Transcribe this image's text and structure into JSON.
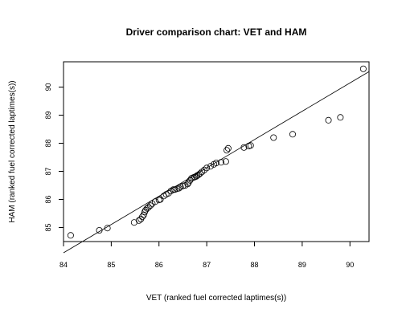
{
  "chart_data": {
    "type": "scatter",
    "title": "Driver comparison chart: VET and HAM",
    "xlabel": "VET (ranked fuel corrected laptimes(s))",
    "ylabel": "HAM (ranked fuel corrected laptimes(s))",
    "xlim": [
      84.0,
      90.4
    ],
    "ylim": [
      84.5,
      90.9
    ],
    "x_ticks": [
      84,
      85,
      86,
      87,
      88,
      89,
      90
    ],
    "y_ticks": [
      85,
      86,
      87,
      88,
      89,
      90
    ],
    "grid": false,
    "reference_line": {
      "x": [
        84.0,
        90.4
      ],
      "y": [
        84.1,
        90.55
      ]
    },
    "series": [
      {
        "marker": "open-circle",
        "x": [
          84.15,
          84.75,
          84.92,
          85.48,
          85.58,
          85.62,
          85.65,
          85.68,
          85.7,
          85.72,
          85.75,
          85.78,
          85.82,
          85.86,
          85.92,
          86.0,
          86.03,
          86.1,
          86.15,
          86.2,
          86.25,
          86.3,
          86.33,
          86.38,
          86.42,
          86.45,
          86.5,
          86.55,
          86.6,
          86.62,
          86.65,
          86.68,
          86.72,
          86.75,
          86.78,
          86.8,
          86.83,
          86.86,
          86.9,
          86.95,
          87.0,
          87.08,
          87.15,
          87.2,
          87.3,
          87.4,
          87.42,
          87.45,
          87.78,
          87.88,
          87.92,
          88.4,
          88.8,
          89.55,
          89.8,
          90.28
        ],
        "y": [
          84.72,
          84.9,
          84.98,
          85.18,
          85.25,
          85.3,
          85.38,
          85.45,
          85.55,
          85.62,
          85.68,
          85.72,
          85.78,
          85.85,
          85.92,
          85.98,
          86.0,
          86.12,
          86.18,
          86.22,
          86.3,
          86.35,
          86.35,
          86.38,
          86.4,
          86.45,
          86.48,
          86.5,
          86.55,
          86.6,
          86.68,
          86.75,
          86.78,
          86.8,
          86.82,
          86.85,
          86.88,
          86.92,
          86.98,
          87.05,
          87.12,
          87.18,
          87.25,
          87.3,
          87.32,
          87.35,
          87.75,
          87.82,
          87.85,
          87.9,
          87.92,
          88.2,
          88.32,
          88.82,
          88.92,
          90.65
        ]
      }
    ]
  }
}
